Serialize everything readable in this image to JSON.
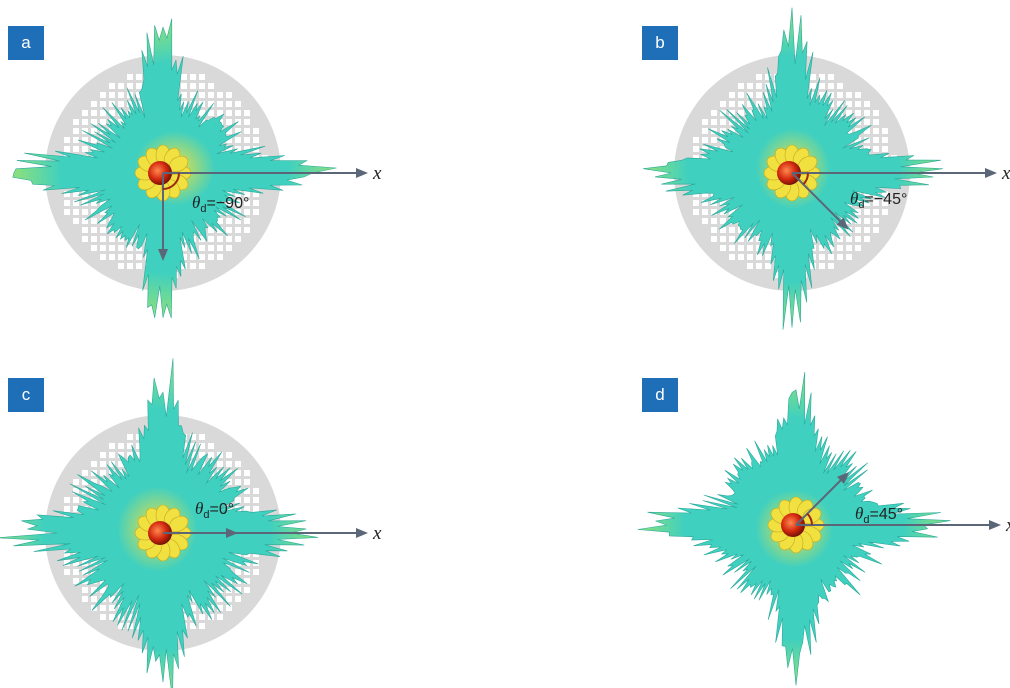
{
  "panels": [
    {
      "label": "a",
      "axis_label": "x",
      "angle_symbol": "θ",
      "angle_subscript": "d",
      "angle_value": "=−90°",
      "theta_deg": -90,
      "substrate": true
    },
    {
      "label": "b",
      "axis_label": "x",
      "angle_symbol": "θ",
      "angle_subscript": "d",
      "angle_value": "=−45°",
      "theta_deg": -45,
      "substrate": true
    },
    {
      "label": "c",
      "axis_label": "x",
      "angle_symbol": "θ",
      "angle_subscript": "d",
      "angle_value": "=0°",
      "theta_deg": 0,
      "substrate": true
    },
    {
      "label": "d",
      "axis_label": "x",
      "angle_symbol": "θ",
      "angle_subscript": "d",
      "angle_value": "=45°",
      "theta_deg": 45,
      "substrate": false
    }
  ],
  "colors": {
    "label_bg": "#1f6fb8",
    "lobe_outer": "#8ee07a",
    "lobe_mid": "#3fd0c0",
    "lobe_inner": "#f0e040",
    "core": "#d42a10",
    "axis": "#5b6778",
    "substrate": "#d9d9d9"
  }
}
